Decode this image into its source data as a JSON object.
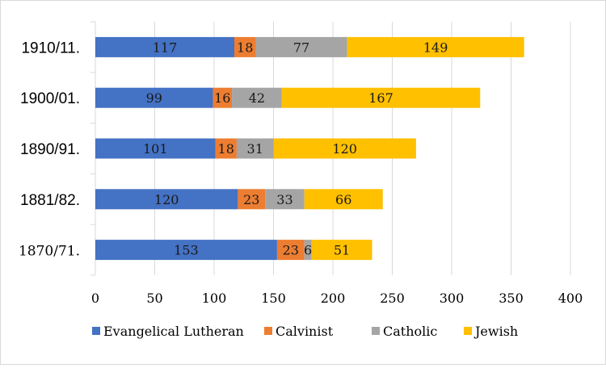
{
  "chart_data": {
    "type": "bar",
    "orientation": "horizontal",
    "stacked": true,
    "categories": [
      "1910/11.",
      "1900/01.",
      "1890/91.",
      "1881/82.",
      "1870/71."
    ],
    "series": [
      {
        "name": "Evangelical Lutheran",
        "color": "#4472C4",
        "values": [
          117,
          99,
          101,
          120,
          153
        ]
      },
      {
        "name": "Calvinist",
        "color": "#ED7D31",
        "values": [
          18,
          16,
          18,
          23,
          23
        ]
      },
      {
        "name": "Catholic",
        "color": "#A5A5A5",
        "values": [
          77,
          42,
          31,
          33,
          6
        ]
      },
      {
        "name": "Jewish",
        "color": "#FFC000",
        "values": [
          149,
          167,
          120,
          66,
          51
        ]
      }
    ],
    "xlim": [
      0,
      400
    ],
    "xticks": [
      "0",
      "50",
      "100",
      "150",
      "200",
      "250",
      "300",
      "350",
      "400"
    ],
    "grid": "vertical",
    "legend_position": "bottom",
    "title": "",
    "xlabel": "",
    "ylabel": ""
  }
}
